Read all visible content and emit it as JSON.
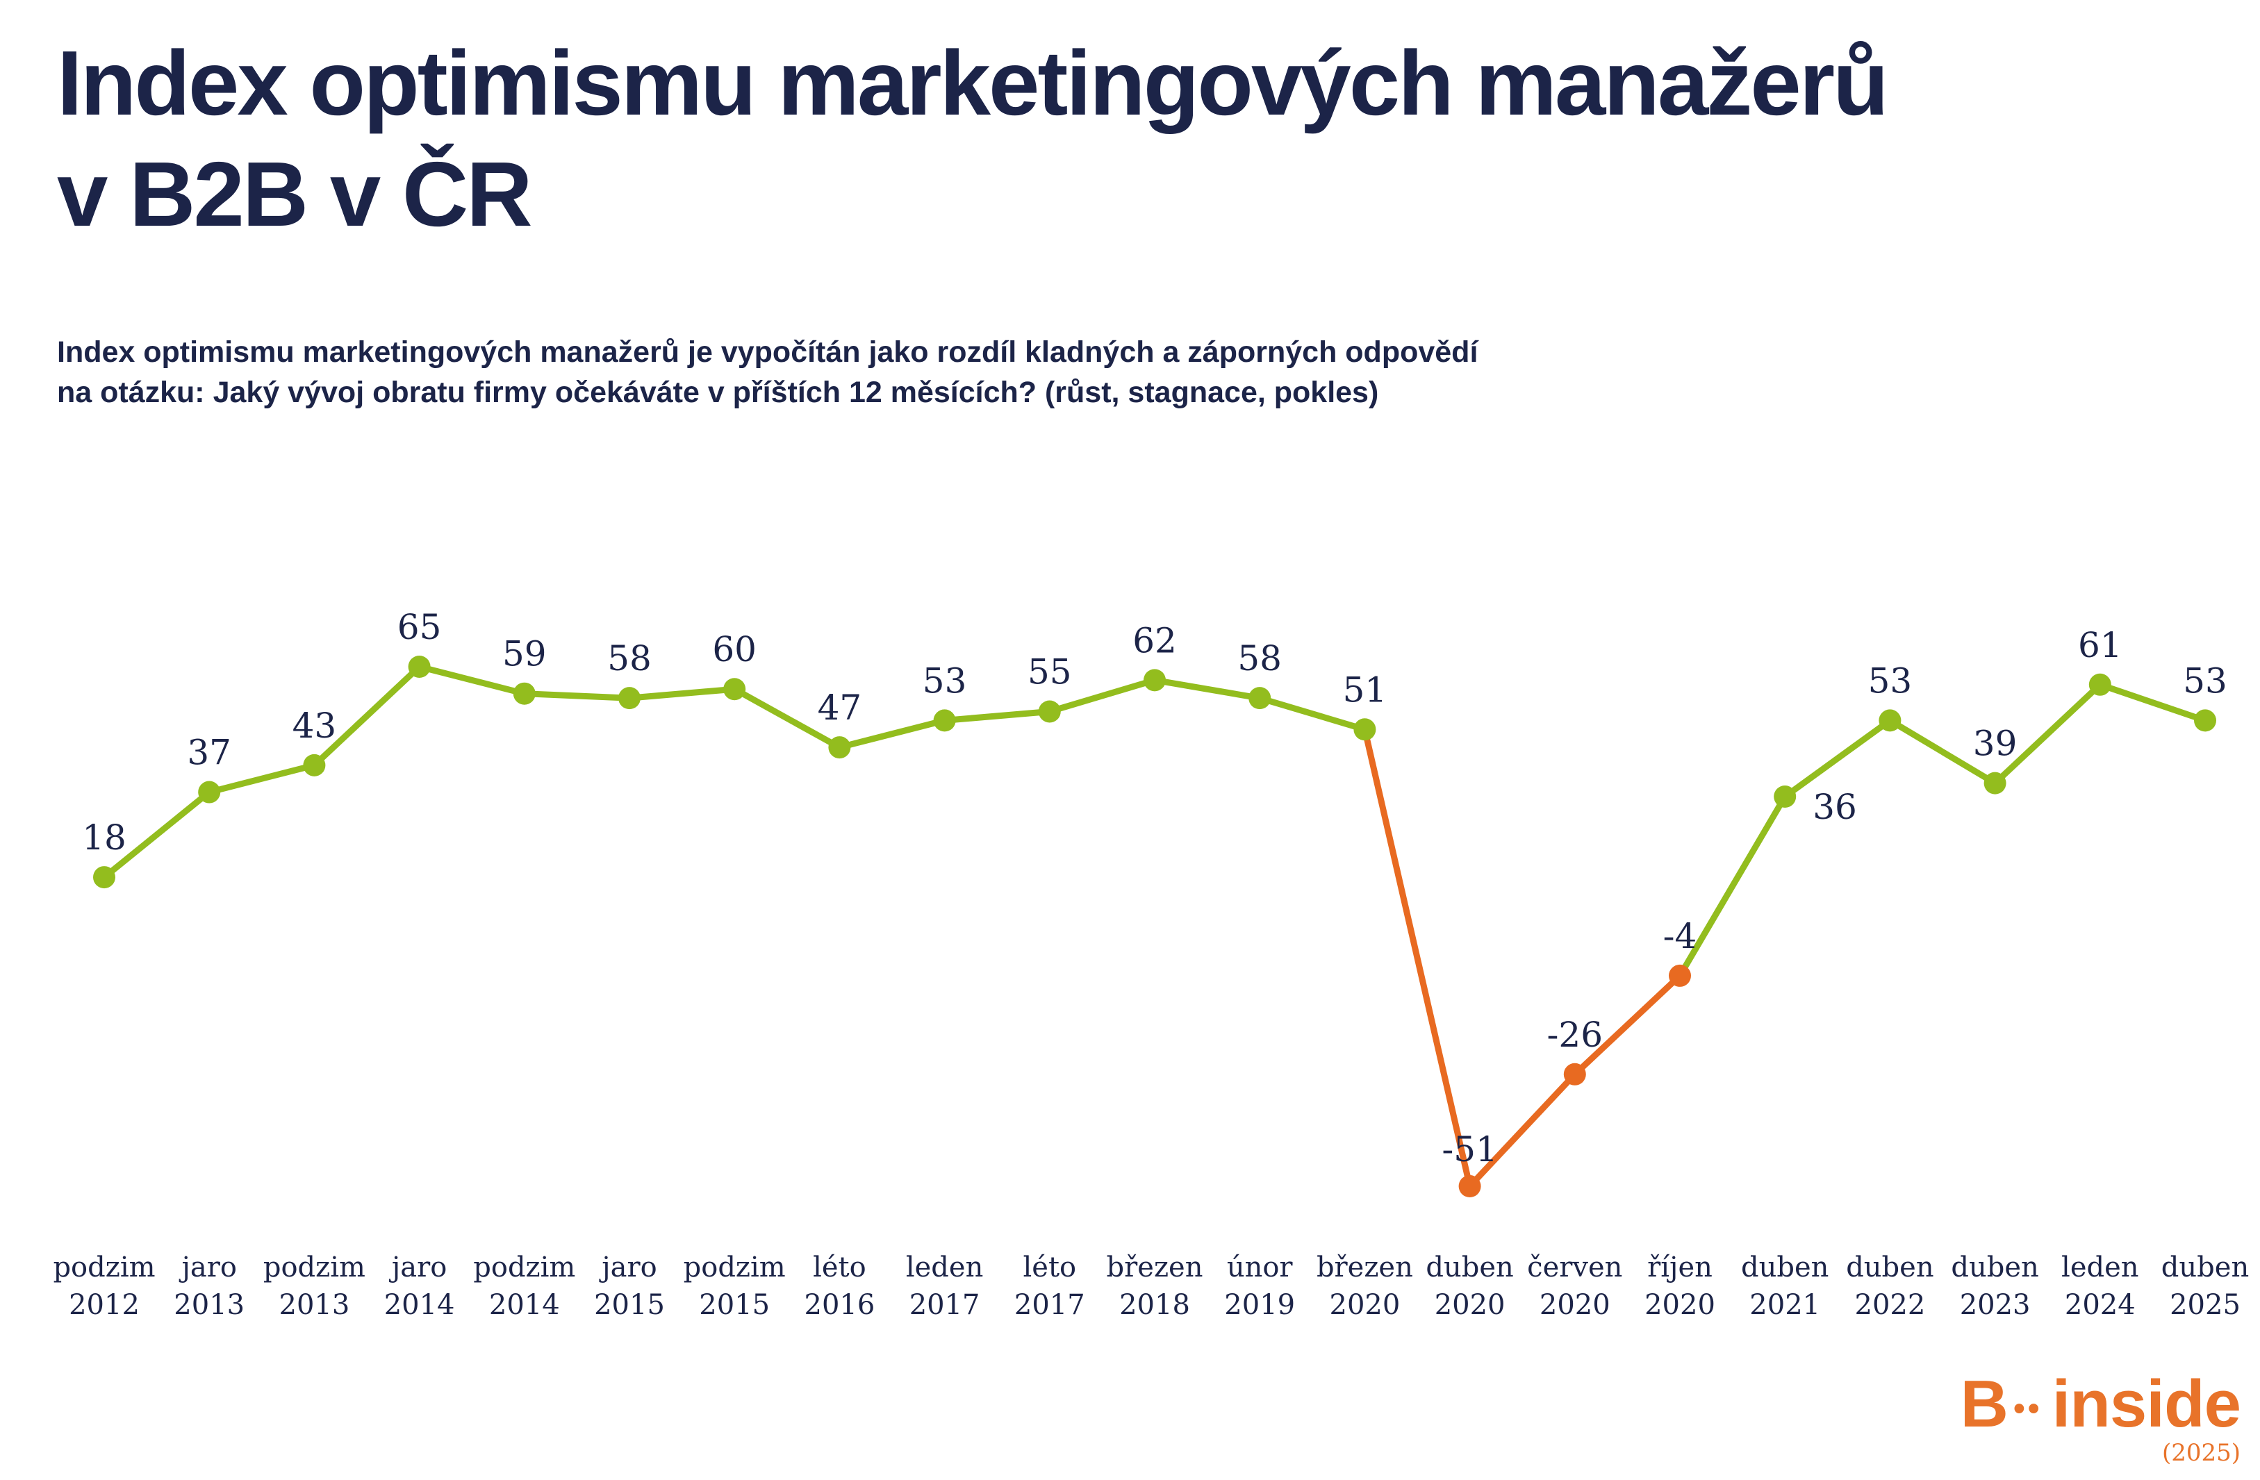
{
  "title_lines": [
    "Index optimismu marketingových manažerů",
    "v B2B v ČR"
  ],
  "subtitle_lines": [
    "Index optimismu marketingových manažerů je vypočítán jako rozdíl kladných a záporných odpovědí",
    "na otázku: Jaký vývoj obratu firmy očekáváte v příštích 12 měsících? (růst, stagnace, pokles)"
  ],
  "logo": {
    "text_b": "B",
    "dots": "••",
    "text_inside": "inside",
    "year": "(2025)"
  },
  "colors": {
    "positive": "#93bd1e",
    "negative": "#e86a21",
    "text": "#1c2448",
    "brand": "#e8732a"
  },
  "chart_data": {
    "type": "line",
    "categories": [
      [
        "podzim",
        "2012"
      ],
      [
        "jaro",
        "2013"
      ],
      [
        "podzim",
        "2013"
      ],
      [
        "jaro",
        "2014"
      ],
      [
        "podzim",
        "2014"
      ],
      [
        "jaro",
        "2015"
      ],
      [
        "podzim",
        "2015"
      ],
      [
        "léto",
        "2016"
      ],
      [
        "leden",
        "2017"
      ],
      [
        "léto",
        "2017"
      ],
      [
        "březen",
        "2018"
      ],
      [
        "únor",
        "2019"
      ],
      [
        "březen",
        "2020"
      ],
      [
        "duben",
        "2020"
      ],
      [
        "červen",
        "2020"
      ],
      [
        "říjen",
        "2020"
      ],
      [
        "duben",
        "2021"
      ],
      [
        "duben",
        "2022"
      ],
      [
        "duben",
        "2023"
      ],
      [
        "leden",
        "2024"
      ],
      [
        "duben",
        "2025"
      ]
    ],
    "values": [
      18,
      37,
      43,
      65,
      59,
      58,
      60,
      47,
      53,
      55,
      62,
      58,
      51,
      -51,
      -26,
      -4,
      36,
      53,
      39,
      61,
      53
    ],
    "highlight_range": [
      12,
      16
    ],
    "ylim": [
      -51,
      65
    ],
    "grid": false,
    "legend": "none"
  }
}
